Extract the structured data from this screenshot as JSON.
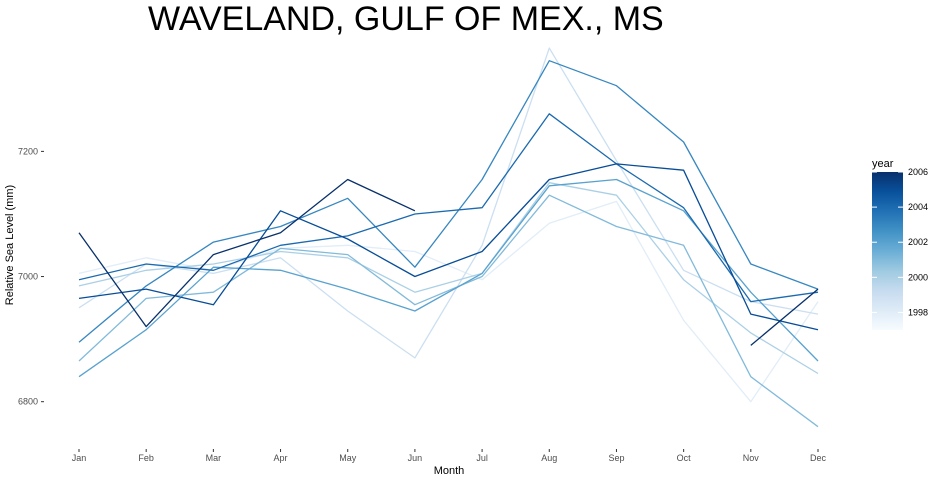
{
  "chart_data": {
    "type": "line",
    "title": "WAVELAND, GULF OF MEX., MS",
    "xlabel": "Month",
    "ylabel": "Relative Sea Level (mm)",
    "categories": [
      "Jan",
      "Feb",
      "Mar",
      "Apr",
      "May",
      "Jun",
      "Jul",
      "Aug",
      "Sep",
      "Oct",
      "Nov",
      "Dec"
    ],
    "yticks": [
      6800,
      7000,
      7200
    ],
    "ytick_labels": [
      "6800",
      "7000",
      "7200"
    ],
    "ylim": [
      6726,
      7378
    ],
    "grid": false,
    "legend": {
      "title": "year",
      "position": "right",
      "type": "colorbar",
      "range": [
        1997,
        2006
      ],
      "ticks": [
        1998,
        2000,
        2002,
        2004,
        2006
      ],
      "tick_labels": [
        "1998",
        "2000",
        "2002",
        "2004",
        "2006"
      ]
    },
    "colors": {
      "low": "#f7fbff",
      "high": "#08306b",
      "ramp": [
        "#f7fbff",
        "#deebf7",
        "#c6dbef",
        "#9ecae1",
        "#6baed6",
        "#4292c6",
        "#2171b5",
        "#08519c",
        "#08306b"
      ]
    },
    "series": [
      {
        "year": 1998,
        "values": [
          7005,
          7030,
          7010,
          7045,
          7050,
          7040,
          6995,
          7085,
          7120,
          6930,
          6800,
          6960
        ]
      },
      {
        "year": 1999,
        "values": [
          6950,
          7020,
          7005,
          7030,
          6945,
          6870,
          7050,
          7365,
          7185,
          7010,
          6960,
          6940
        ]
      },
      {
        "year": 2000,
        "values": [
          6985,
          7010,
          7020,
          7040,
          7030,
          6975,
          7005,
          7150,
          7130,
          6995,
          6910,
          6845
        ]
      },
      {
        "year": 2001,
        "values": [
          6865,
          6965,
          6975,
          7045,
          7035,
          6955,
          7000,
          7130,
          7080,
          7050,
          6840,
          6760
        ]
      },
      {
        "year": 2002,
        "values": [
          6840,
          6915,
          7015,
          7010,
          6980,
          6945,
          7005,
          7145,
          7155,
          7105,
          6975,
          6865
        ]
      },
      {
        "year": 2003,
        "values": [
          6895,
          6985,
          7055,
          7080,
          7125,
          7015,
          7155,
          7345,
          7305,
          7215,
          7020,
          6980
        ]
      },
      {
        "year": 2004,
        "values": [
          6995,
          7020,
          7010,
          7050,
          7065,
          7100,
          7110,
          7260,
          7180,
          7110,
          6960,
          6975
        ]
      },
      {
        "year": 2005,
        "values": [
          6965,
          6980,
          6955,
          7105,
          7060,
          7000,
          7040,
          7155,
          7180,
          7170,
          6940,
          6915
        ]
      },
      {
        "year": 2006,
        "values": [
          7070,
          6920,
          7035,
          7070,
          7155,
          7105,
          null,
          null,
          null,
          null,
          6890,
          6980
        ]
      }
    ]
  }
}
